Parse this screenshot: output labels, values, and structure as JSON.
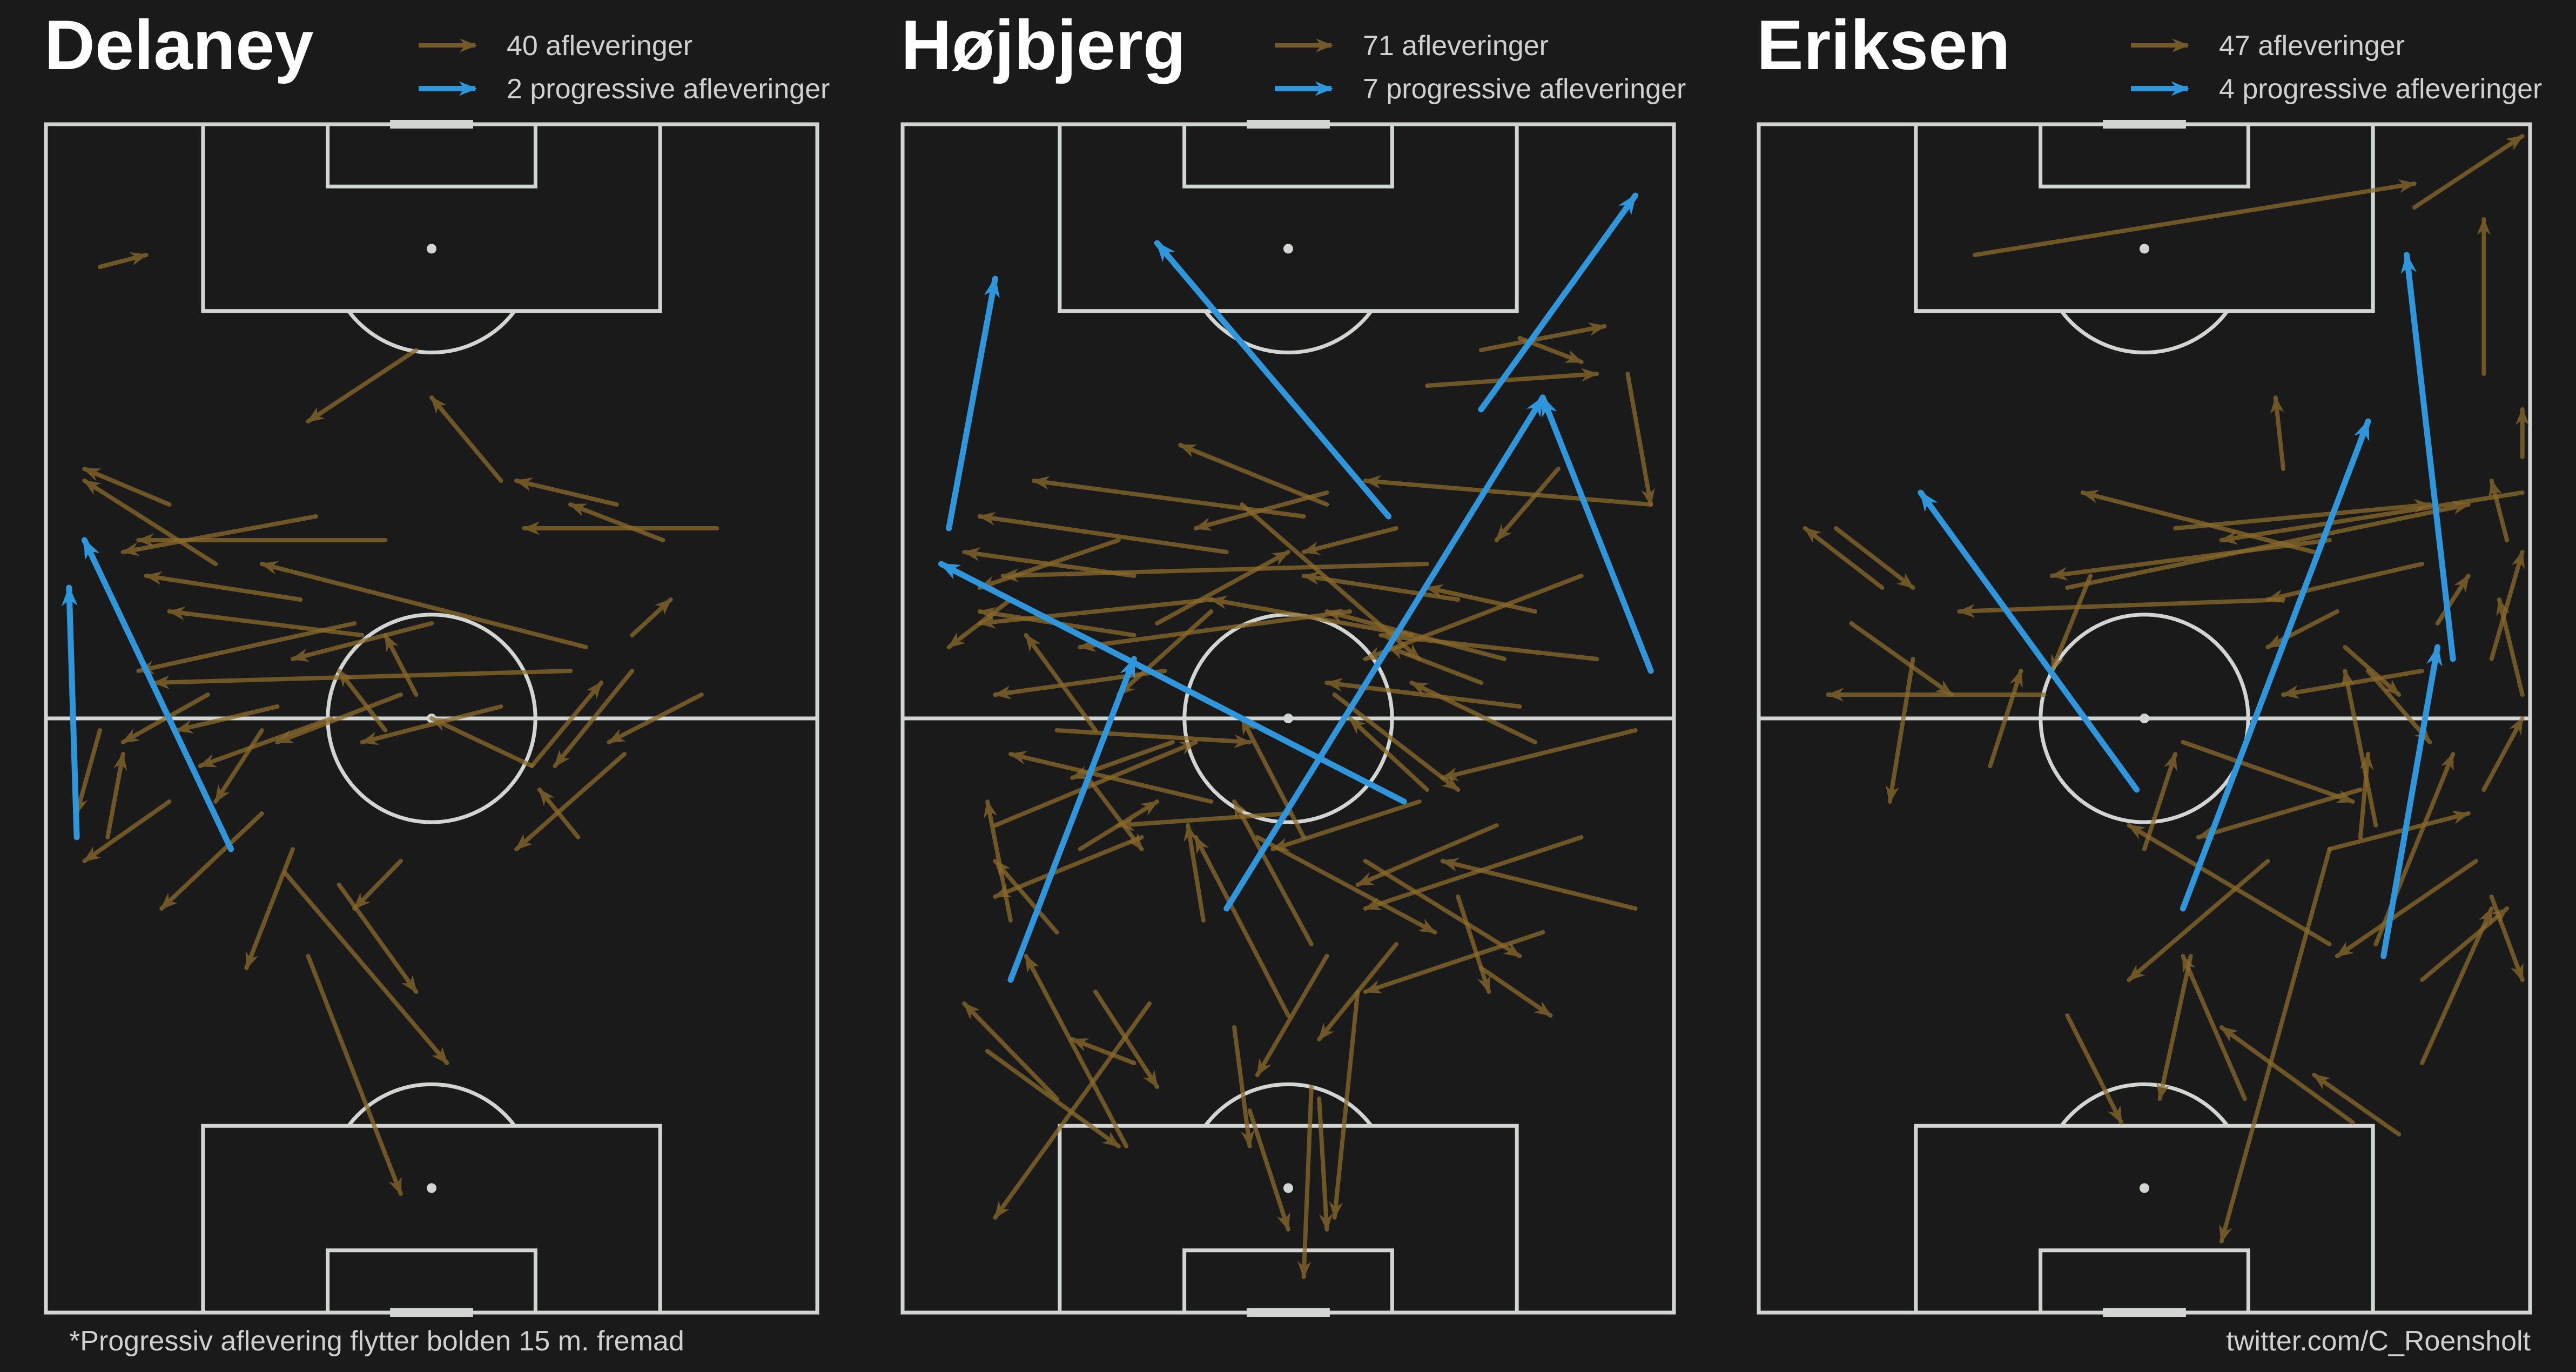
{
  "colors": {
    "background": "#1a1a1a",
    "pitch_lines": "#d2d6d2",
    "pass": "#8a6a2c",
    "progressive_pass": "#2f96db"
  },
  "footnote": "*Progressiv aflevering flytter bolden 15 m. fremad",
  "credit": "twitter.com/C_Roensholt",
  "players": [
    {
      "name": "Delaney",
      "legend_passes": "40 afleveringer",
      "legend_progressive": "2 progressive afleveringer",
      "passes": [
        [
          0.07,
          0.12,
          0.13,
          0.11
        ],
        [
          0.48,
          0.19,
          0.34,
          0.25
        ],
        [
          0.59,
          0.3,
          0.5,
          0.23
        ],
        [
          0.74,
          0.32,
          0.61,
          0.3
        ],
        [
          0.8,
          0.35,
          0.68,
          0.32
        ],
        [
          0.87,
          0.34,
          0.62,
          0.34
        ],
        [
          0.44,
          0.35,
          0.12,
          0.35
        ],
        [
          0.35,
          0.33,
          0.1,
          0.36
        ],
        [
          0.16,
          0.32,
          0.05,
          0.29
        ],
        [
          0.22,
          0.37,
          0.05,
          0.3
        ],
        [
          0.33,
          0.4,
          0.13,
          0.38
        ],
        [
          0.41,
          0.43,
          0.16,
          0.41
        ],
        [
          0.68,
          0.46,
          0.14,
          0.47
        ],
        [
          0.7,
          0.44,
          0.28,
          0.37
        ],
        [
          0.5,
          0.42,
          0.32,
          0.45
        ],
        [
          0.4,
          0.42,
          0.12,
          0.46
        ],
        [
          0.21,
          0.48,
          0.1,
          0.52
        ],
        [
          0.3,
          0.49,
          0.17,
          0.51
        ],
        [
          0.37,
          0.5,
          0.2,
          0.54
        ],
        [
          0.46,
          0.48,
          0.3,
          0.52
        ],
        [
          0.59,
          0.49,
          0.41,
          0.52
        ],
        [
          0.63,
          0.54,
          0.5,
          0.5
        ],
        [
          0.75,
          0.53,
          0.61,
          0.61
        ],
        [
          0.69,
          0.6,
          0.64,
          0.56
        ],
        [
          0.63,
          0.54,
          0.72,
          0.47
        ],
        [
          0.76,
          0.46,
          0.66,
          0.54
        ],
        [
          0.07,
          0.51,
          0.04,
          0.58
        ],
        [
          0.08,
          0.6,
          0.1,
          0.53
        ],
        [
          0.16,
          0.57,
          0.05,
          0.62
        ],
        [
          0.28,
          0.58,
          0.15,
          0.66
        ],
        [
          0.28,
          0.51,
          0.22,
          0.57
        ],
        [
          0.44,
          0.51,
          0.38,
          0.46
        ],
        [
          0.48,
          0.48,
          0.44,
          0.43
        ],
        [
          0.32,
          0.61,
          0.26,
          0.71
        ],
        [
          0.46,
          0.62,
          0.4,
          0.66
        ],
        [
          0.38,
          0.64,
          0.48,
          0.73
        ],
        [
          0.31,
          0.63,
          0.52,
          0.79
        ],
        [
          0.34,
          0.7,
          0.46,
          0.9
        ],
        [
          0.76,
          0.43,
          0.81,
          0.4
        ],
        [
          0.85,
          0.48,
          0.73,
          0.52
        ]
      ],
      "progressive": [
        [
          0.24,
          0.61,
          0.05,
          0.35
        ],
        [
          0.04,
          0.6,
          0.03,
          0.39
        ]
      ]
    },
    {
      "name": "Højbjerg",
      "legend_passes": "71 afleveringer",
      "legend_progressive": "7 progressive afleveringer",
      "passes": [
        [
          0.68,
          0.22,
          0.9,
          0.21
        ],
        [
          0.8,
          0.18,
          0.88,
          0.2
        ],
        [
          0.75,
          0.19,
          0.91,
          0.17
        ],
        [
          0.94,
          0.21,
          0.97,
          0.32
        ],
        [
          0.97,
          0.32,
          0.6,
          0.3
        ],
        [
          0.55,
          0.32,
          0.36,
          0.27
        ],
        [
          0.85,
          0.29,
          0.77,
          0.35
        ],
        [
          0.52,
          0.33,
          0.17,
          0.3
        ],
        [
          0.42,
          0.36,
          0.1,
          0.33
        ],
        [
          0.3,
          0.38,
          0.08,
          0.36
        ],
        [
          0.68,
          0.37,
          0.13,
          0.38
        ],
        [
          0.4,
          0.4,
          0.1,
          0.42
        ],
        [
          0.3,
          0.43,
          0.1,
          0.41
        ],
        [
          0.58,
          0.41,
          0.23,
          0.44
        ],
        [
          0.66,
          0.43,
          0.4,
          0.4
        ],
        [
          0.78,
          0.45,
          0.55,
          0.41
        ],
        [
          0.9,
          0.45,
          0.62,
          0.43
        ],
        [
          0.8,
          0.49,
          0.55,
          0.47
        ],
        [
          0.75,
          0.47,
          0.63,
          0.44
        ],
        [
          0.4,
          0.41,
          0.28,
          0.48
        ],
        [
          0.88,
          0.38,
          0.6,
          0.45
        ],
        [
          0.44,
          0.32,
          0.67,
          0.45
        ],
        [
          0.33,
          0.42,
          0.5,
          0.36
        ],
        [
          0.72,
          0.4,
          0.52,
          0.38
        ],
        [
          0.2,
          0.51,
          0.45,
          0.52
        ],
        [
          0.35,
          0.52,
          0.22,
          0.55
        ],
        [
          0.12,
          0.59,
          0.38,
          0.52
        ],
        [
          0.4,
          0.57,
          0.14,
          0.53
        ],
        [
          0.31,
          0.6,
          0.12,
          0.65
        ],
        [
          0.23,
          0.61,
          0.33,
          0.57
        ],
        [
          0.5,
          0.58,
          0.28,
          0.59
        ],
        [
          0.67,
          0.57,
          0.48,
          0.61
        ],
        [
          0.95,
          0.51,
          0.7,
          0.55
        ],
        [
          0.77,
          0.59,
          0.59,
          0.64
        ],
        [
          0.52,
          0.6,
          0.44,
          0.5
        ],
        [
          0.6,
          0.62,
          0.8,
          0.7
        ],
        [
          0.83,
          0.68,
          0.6,
          0.73
        ],
        [
          0.95,
          0.66,
          0.7,
          0.62
        ],
        [
          0.72,
          0.65,
          0.76,
          0.73
        ],
        [
          0.75,
          0.71,
          0.84,
          0.75
        ],
        [
          0.39,
          0.67,
          0.37,
          0.59
        ],
        [
          0.53,
          0.69,
          0.43,
          0.57
        ],
        [
          0.55,
          0.7,
          0.46,
          0.8
        ],
        [
          0.5,
          0.75,
          0.38,
          0.6
        ],
        [
          0.43,
          0.76,
          0.45,
          0.86
        ],
        [
          0.32,
          0.74,
          0.12,
          0.92
        ],
        [
          0.25,
          0.73,
          0.33,
          0.81
        ],
        [
          0.3,
          0.79,
          0.22,
          0.77
        ],
        [
          0.2,
          0.82,
          0.08,
          0.74
        ],
        [
          0.29,
          0.86,
          0.16,
          0.7
        ],
        [
          0.11,
          0.78,
          0.28,
          0.86
        ],
        [
          0.45,
          0.83,
          0.5,
          0.93
        ],
        [
          0.53,
          0.81,
          0.52,
          0.97
        ],
        [
          0.54,
          0.82,
          0.55,
          0.93
        ],
        [
          0.59,
          0.73,
          0.56,
          0.92
        ],
        [
          0.64,
          0.69,
          0.54,
          0.77
        ],
        [
          0.88,
          0.6,
          0.6,
          0.66
        ],
        [
          0.2,
          0.68,
          0.12,
          0.62
        ],
        [
          0.14,
          0.67,
          0.11,
          0.57
        ],
        [
          0.25,
          0.51,
          0.16,
          0.43
        ],
        [
          0.34,
          0.46,
          0.12,
          0.48
        ],
        [
          0.55,
          0.31,
          0.38,
          0.34
        ],
        [
          0.82,
          0.41,
          0.68,
          0.39
        ],
        [
          0.64,
          0.34,
          0.52,
          0.36
        ],
        [
          0.28,
          0.35,
          0.1,
          0.39
        ],
        [
          0.14,
          0.4,
          0.06,
          0.44
        ],
        [
          0.56,
          0.48,
          0.72,
          0.56
        ],
        [
          0.46,
          0.6,
          0.69,
          0.68
        ],
        [
          0.24,
          0.55,
          0.31,
          0.61
        ],
        [
          0.68,
          0.56,
          0.58,
          0.5
        ],
        [
          0.82,
          0.52,
          0.66,
          0.47
        ]
      ],
      "progressive": [
        [
          0.06,
          0.34,
          0.12,
          0.13
        ],
        [
          0.63,
          0.33,
          0.33,
          0.1
        ],
        [
          0.75,
          0.24,
          0.95,
          0.06
        ],
        [
          0.97,
          0.46,
          0.83,
          0.23
        ],
        [
          0.42,
          0.66,
          0.83,
          0.23
        ],
        [
          0.65,
          0.57,
          0.05,
          0.37
        ],
        [
          0.14,
          0.72,
          0.3,
          0.45
        ]
      ]
    },
    {
      "name": "Eriksen",
      "legend_passes": "47 afleveringer",
      "legend_progressive": "4 progressive afleveringer",
      "passes": [
        [
          0.28,
          0.11,
          0.85,
          0.05
        ],
        [
          0.85,
          0.07,
          0.99,
          0.01
        ],
        [
          0.94,
          0.21,
          0.94,
          0.08
        ],
        [
          0.99,
          0.28,
          0.99,
          0.24
        ],
        [
          0.68,
          0.29,
          0.67,
          0.23
        ],
        [
          0.54,
          0.34,
          0.87,
          0.32
        ],
        [
          0.97,
          0.35,
          0.95,
          0.3
        ],
        [
          0.99,
          0.31,
          0.6,
          0.35
        ],
        [
          0.74,
          0.35,
          0.38,
          0.38
        ],
        [
          0.72,
          0.36,
          0.42,
          0.31
        ],
        [
          0.68,
          0.4,
          0.26,
          0.41
        ],
        [
          0.4,
          0.39,
          0.92,
          0.32
        ],
        [
          0.86,
          0.37,
          0.66,
          0.4
        ],
        [
          0.16,
          0.39,
          0.06,
          0.34
        ],
        [
          0.1,
          0.34,
          0.2,
          0.39
        ],
        [
          0.12,
          0.42,
          0.25,
          0.48
        ],
        [
          0.37,
          0.48,
          0.09,
          0.48
        ],
        [
          0.2,
          0.45,
          0.17,
          0.57
        ],
        [
          0.43,
          0.38,
          0.38,
          0.46
        ],
        [
          0.75,
          0.41,
          0.66,
          0.44
        ],
        [
          0.86,
          0.46,
          0.68,
          0.48
        ],
        [
          0.76,
          0.44,
          0.83,
          0.48
        ],
        [
          0.79,
          0.46,
          0.87,
          0.52
        ],
        [
          0.55,
          0.52,
          0.77,
          0.57
        ],
        [
          0.78,
          0.56,
          0.57,
          0.6
        ],
        [
          0.66,
          0.62,
          0.48,
          0.72
        ],
        [
          0.74,
          0.61,
          0.92,
          0.58
        ],
        [
          0.8,
          0.59,
          0.76,
          0.46
        ],
        [
          0.74,
          0.69,
          0.48,
          0.59
        ],
        [
          0.78,
          0.6,
          0.79,
          0.53
        ],
        [
          0.93,
          0.62,
          0.75,
          0.7
        ],
        [
          0.8,
          0.69,
          0.9,
          0.53
        ],
        [
          0.86,
          0.72,
          0.97,
          0.66
        ],
        [
          0.95,
          0.65,
          0.99,
          0.72
        ],
        [
          0.63,
          0.82,
          0.55,
          0.7
        ],
        [
          0.77,
          0.84,
          0.6,
          0.76
        ],
        [
          0.83,
          0.85,
          0.72,
          0.8
        ],
        [
          0.56,
          0.7,
          0.52,
          0.82
        ],
        [
          0.4,
          0.75,
          0.47,
          0.84
        ],
        [
          0.74,
          0.61,
          0.6,
          0.94
        ],
        [
          0.86,
          0.79,
          0.95,
          0.66
        ],
        [
          0.94,
          0.56,
          0.99,
          0.5
        ],
        [
          0.88,
          0.42,
          0.92,
          0.38
        ],
        [
          0.3,
          0.54,
          0.34,
          0.46
        ],
        [
          0.5,
          0.61,
          0.54,
          0.53
        ],
        [
          0.99,
          0.48,
          0.96,
          0.4
        ],
        [
          0.95,
          0.45,
          0.99,
          0.36
        ]
      ],
      "progressive": [
        [
          0.49,
          0.56,
          0.21,
          0.31
        ],
        [
          0.55,
          0.66,
          0.79,
          0.25
        ],
        [
          0.9,
          0.45,
          0.84,
          0.11
        ],
        [
          0.81,
          0.7,
          0.88,
          0.44
        ]
      ]
    }
  ]
}
